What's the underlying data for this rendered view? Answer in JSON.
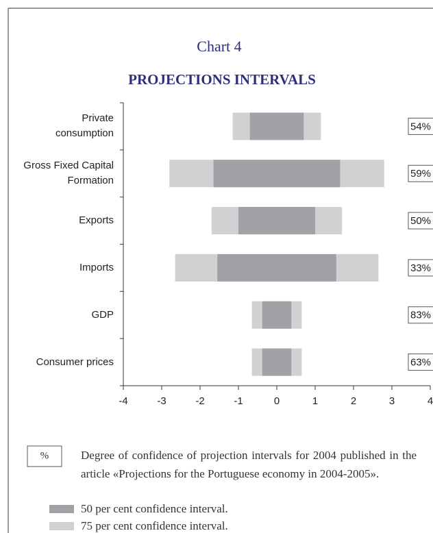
{
  "chart_data": {
    "type": "interval",
    "title": "Chart 4",
    "subtitle": "PROJECTIONS INTERVALS",
    "categories": [
      "Private consumption",
      "Gross Fixed Capital Formation",
      "Exports",
      "Imports",
      "GDP",
      "Consumer prices"
    ],
    "series": [
      {
        "name": "75 per cent confidence interval.",
        "color": "#d0d1d3",
        "low": [
          -1.15,
          -2.8,
          -1.7,
          -2.65,
          -0.65,
          -0.65
        ],
        "high": [
          1.15,
          2.8,
          1.7,
          2.65,
          0.65,
          0.65
        ]
      },
      {
        "name": "50 per cent confidence interval.",
        "color": "#a0a2a5",
        "low": [
          -0.7,
          -1.65,
          -1.0,
          -1.55,
          -0.38,
          -0.38
        ],
        "high": [
          0.7,
          1.65,
          1.0,
          1.55,
          0.38,
          0.38
        ]
      }
    ],
    "confidence": {
      "symbol": "%",
      "description": "Degree of confidence of projection intervals for 2004 published in the article «Projections for the Portuguese economy in 2004-2005».",
      "values": [
        54,
        59,
        50,
        33,
        83,
        63
      ],
      "value_labels": [
        "54%",
        "59%",
        "50%",
        "33%",
        "83%",
        "63%"
      ]
    },
    "xlim": [
      -4,
      4
    ],
    "xticks": [
      -4,
      -3,
      -2,
      -1,
      0,
      1,
      2,
      3,
      4
    ]
  }
}
